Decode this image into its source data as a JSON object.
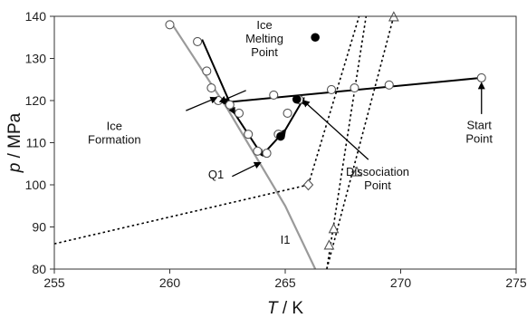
{
  "chart_data": {
    "type": "scatter",
    "title": "",
    "xlabel": {
      "var": "T",
      "unit": "K"
    },
    "ylabel": {
      "var": "p",
      "unit": "MPa"
    },
    "xlim": [
      255,
      275
    ],
    "ylim": [
      80,
      140
    ],
    "x_ticks": [
      "255",
      "260",
      "265",
      "270",
      "275"
    ],
    "y_ticks": [
      "80",
      "90",
      "100",
      "110",
      "120",
      "130",
      "140"
    ],
    "grid": false,
    "legend": "none",
    "lines": [
      {
        "name": "ice melting curve",
        "style": "solid",
        "color": "#9a9a9a",
        "points": [
          [
            260,
            139
          ],
          [
            262.5,
            118
          ],
          [
            265,
            95
          ],
          [
            266.3,
            80
          ]
        ]
      },
      {
        "name": "dotted boundary (low-T)",
        "style": "dotted",
        "color": "#000000",
        "points": [
          [
            255,
            86
          ],
          [
            266,
            100
          ]
        ]
      },
      {
        "name": "dotted boundary (middle)",
        "style": "dotted",
        "color": "#000000",
        "points": [
          [
            266,
            100
          ],
          [
            268.2,
            140
          ]
        ]
      },
      {
        "name": "dotted boundary (right)",
        "style": "dotted",
        "color": "#000000",
        "points": [
          [
            266.8,
            80
          ],
          [
            268.5,
            140
          ]
        ]
      },
      {
        "name": "dotted boundary (far right)",
        "style": "dotted",
        "color": "#000000",
        "points": [
          [
            266.8,
            80
          ],
          [
            269.7,
            140
          ]
        ]
      }
    ],
    "paths": [
      {
        "name": "cooling path from start point",
        "style": "solid-arrow",
        "color": "#000000",
        "points": [
          [
            273.5,
            125.4
          ],
          [
            262.3,
            119.5
          ]
        ]
      },
      {
        "name": "descending path (ice formation to Q1)",
        "style": "solid-arrow",
        "color": "#000000",
        "points": [
          [
            261.4,
            134.5
          ],
          [
            262.8,
            117
          ],
          [
            264,
            107
          ]
        ]
      },
      {
        "name": "ascending path (Q1 to dissociation)",
        "style": "solid-arrow",
        "color": "#000000",
        "points": [
          [
            264,
            107
          ],
          [
            265,
            113
          ],
          [
            265.8,
            120.5
          ]
        ]
      }
    ],
    "series": [
      {
        "name": "open circles",
        "marker": "open-circle",
        "points": [
          [
            260,
            138
          ],
          [
            261.2,
            134
          ],
          [
            261.6,
            127
          ],
          [
            261.8,
            123
          ],
          [
            262.1,
            120
          ],
          [
            262.6,
            119
          ],
          [
            263,
            117
          ],
          [
            263.4,
            112
          ],
          [
            263.8,
            108
          ],
          [
            264.2,
            107.5
          ],
          [
            264.7,
            112
          ],
          [
            265.1,
            117
          ],
          [
            265.6,
            120.2
          ],
          [
            264.5,
            121.3
          ],
          [
            267,
            122.6
          ],
          [
            268,
            123
          ],
          [
            269.5,
            123.7
          ],
          [
            273.5,
            125.4
          ]
        ]
      },
      {
        "name": "filled circles",
        "marker": "filled-circle",
        "points": [
          [
            266.3,
            135
          ],
          [
            265.5,
            120.3
          ],
          [
            264.8,
            111.5
          ]
        ]
      },
      {
        "name": "open triangles",
        "marker": "open-triangle",
        "points": [
          [
            269.7,
            139.8
          ],
          [
            268.1,
            103
          ],
          [
            267.1,
            89.5
          ],
          [
            266.9,
            85.6
          ]
        ]
      },
      {
        "name": "open diamond",
        "marker": "open-diamond",
        "points": [
          [
            266,
            100
          ]
        ]
      }
    ],
    "annotations": [
      {
        "id": "ice-melting",
        "lines": [
          "Ice",
          "Melting",
          "Point"
        ]
      },
      {
        "id": "ice-formation",
        "lines": [
          "Ice",
          "Formation"
        ]
      },
      {
        "id": "q1",
        "lines": [
          "Q1"
        ]
      },
      {
        "id": "dissociation",
        "lines": [
          "Dissociation",
          "Point"
        ]
      },
      {
        "id": "start",
        "lines": [
          "Start",
          "Point"
        ]
      },
      {
        "id": "i1",
        "lines": [
          "I1"
        ]
      }
    ],
    "colors": {
      "ice_line": "#9a9a9a",
      "ink": "#000000"
    }
  }
}
